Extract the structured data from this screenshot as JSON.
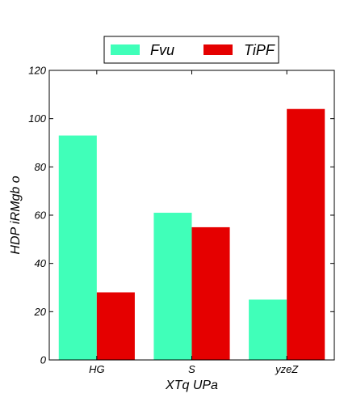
{
  "chart_data": {
    "type": "bar",
    "categories": [
      "HG",
      "S",
      "yzeZ"
    ],
    "series": [
      {
        "name": "Fvu",
        "values": [
          93,
          61,
          25
        ],
        "color": "#40ffb9"
      },
      {
        "name": "TiPF",
        "values": [
          28,
          55,
          104
        ],
        "color": "#e50000"
      }
    ],
    "xlabel": "XTq UPa",
    "ylabel": "HDP iRMgb  o",
    "ylim": [
      0,
      120
    ],
    "yticks": [
      0,
      20,
      40,
      60,
      80,
      100,
      120
    ],
    "grid": false,
    "legend_position": "top-center, above plot"
  }
}
